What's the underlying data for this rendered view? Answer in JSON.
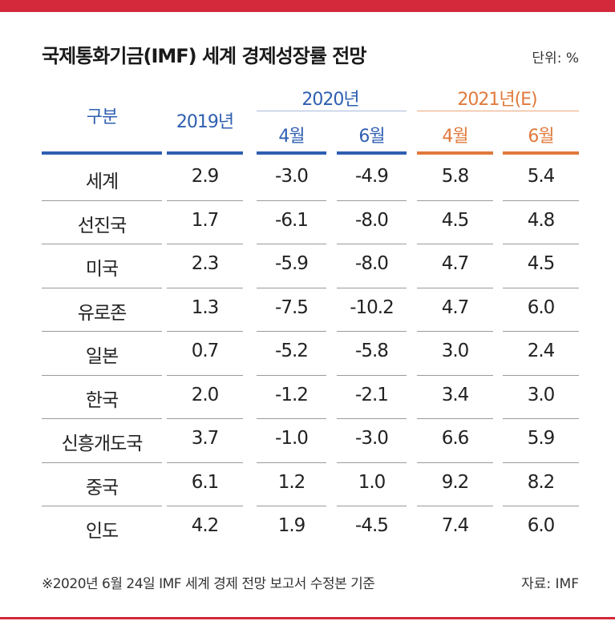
{
  "title": "국제통화기금(IMF) 세계 경제성장률 전망",
  "unit": "단위: %",
  "footnote": "※2020년 6월 24일 IMF 세계 경제 전망 보고서 수정본 기준",
  "source": "자료: IMF",
  "colors": {
    "accent_red": "#d4283b",
    "blue": "#2f5fb1",
    "orange": "#e07a3c"
  },
  "headers": {
    "category": "구분",
    "y2019": "2019년",
    "y2020": "2020년",
    "y2021": "2021년(E)",
    "apr": "4월",
    "jun": "6월"
  },
  "chart_data": {
    "type": "table",
    "title": "국제통화기금(IMF) 세계 경제성장률 전망",
    "unit": "%",
    "columns": [
      "구분",
      "2019년",
      "2020년 4월",
      "2020년 6월",
      "2021년(E) 4월",
      "2021년(E) 6월"
    ],
    "rows": [
      [
        "세계",
        "2.9",
        "-3.0",
        "-4.9",
        "5.8",
        "5.4"
      ],
      [
        "선진국",
        "1.7",
        "-6.1",
        "-8.0",
        "4.5",
        "4.8"
      ],
      [
        "미국",
        "2.3",
        "-5.9",
        "-8.0",
        "4.7",
        "4.5"
      ],
      [
        "유로존",
        "1.3",
        "-7.5",
        "-10.2",
        "4.7",
        "6.0"
      ],
      [
        "일본",
        "0.7",
        "-5.2",
        "-5.8",
        "3.0",
        "2.4"
      ],
      [
        "한국",
        "2.0",
        "-1.2",
        "-2.1",
        "3.4",
        "3.0"
      ],
      [
        "신흥개도국",
        "3.7",
        "-1.0",
        "-3.0",
        "6.6",
        "5.9"
      ],
      [
        "중국",
        "6.1",
        "1.2",
        "1.0",
        "9.2",
        "8.2"
      ],
      [
        "인도",
        "4.2",
        "1.9",
        "-4.5",
        "7.4",
        "6.0"
      ]
    ]
  }
}
